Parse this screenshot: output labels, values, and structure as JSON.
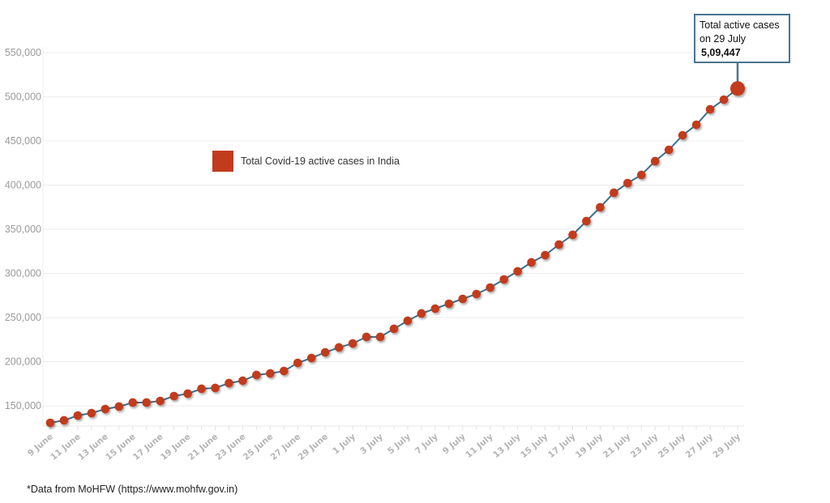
{
  "chart_data": {
    "type": "line",
    "title": "",
    "xlabel": "",
    "ylabel": "",
    "ylim": [
      125000,
      560000
    ],
    "yticks": [
      150000,
      200000,
      250000,
      300000,
      350000,
      400000,
      450000,
      500000,
      550000
    ],
    "ytick_labels": [
      "150,000",
      "200,000",
      "250,000",
      "300,000",
      "350,000",
      "400,000",
      "450,000",
      "500,000",
      "550,000"
    ],
    "grid": true,
    "legend_position": "upper-left-inside",
    "series": [
      {
        "name": "Total Covid-19 active cases in India",
        "color": "#c23b1c",
        "line_color": "#3e6f8f",
        "values": [
          130700,
          133500,
          139000,
          141700,
          146300,
          149100,
          153700,
          153700,
          155500,
          161000,
          163800,
          169300,
          170200,
          175700,
          178400,
          184900,
          186700,
          189400,
          198600,
          204100,
          210500,
          216100,
          220600,
          228000,
          228000,
          237200,
          246300,
          254600,
          260100,
          265600,
          271100,
          276600,
          283900,
          293100,
          302300,
          312400,
          320600,
          332600,
          343600,
          359200,
          374800,
          391300,
          402300,
          411500,
          427100,
          439900,
          456400,
          468300,
          485800,
          496800,
          509447
        ]
      }
    ],
    "x": [
      "9 June",
      "10 June",
      "11 June",
      "12 June",
      "13 June",
      "14 June",
      "15 June",
      "16 June",
      "17 June",
      "18 June",
      "19 June",
      "20 June",
      "21 June",
      "22 June",
      "23 June",
      "24 June",
      "25 June",
      "26 June",
      "27 June",
      "28 June",
      "29 June",
      "30 June",
      "1 July",
      "2 July",
      "3 July",
      "4 July",
      "5 July",
      "6 July",
      "7 July",
      "8 July",
      "9 July",
      "10 July",
      "11 July",
      "12 July",
      "13 July",
      "14 July",
      "15 July",
      "16 July",
      "17 July",
      "18 July",
      "19 July",
      "20 July",
      "21 July",
      "22 July",
      "23 July",
      "24 July",
      "25 July",
      "26 July",
      "27 July",
      "28 July",
      "29 July"
    ],
    "xtick_labels": [
      "9 June",
      "11 June",
      "13 June",
      "15 June",
      "17 June",
      "19 June",
      "21 June",
      "23 June",
      "25 June",
      "27 June",
      "29 June",
      "1 July",
      "3 July",
      "5 July",
      "7 July",
      "9 July",
      "11 July",
      "13 July",
      "15 July",
      "17 July",
      "19 July",
      "21 July",
      "23 July",
      "25 July",
      "27 July",
      "29 July"
    ],
    "annotations": [
      {
        "point": "29 July",
        "text": "Total active cases on 29 July",
        "value_text": "5,09,447"
      }
    ]
  },
  "legend": {
    "label": "Total Covid-19 active cases in India",
    "color": "#c23b1c"
  },
  "callout": {
    "line1": "Total active cases",
    "line2": "on 29 July",
    "value": "5,09,447"
  },
  "footnote": "*Data from MoHFW (https://www.mohfw.gov.in)"
}
